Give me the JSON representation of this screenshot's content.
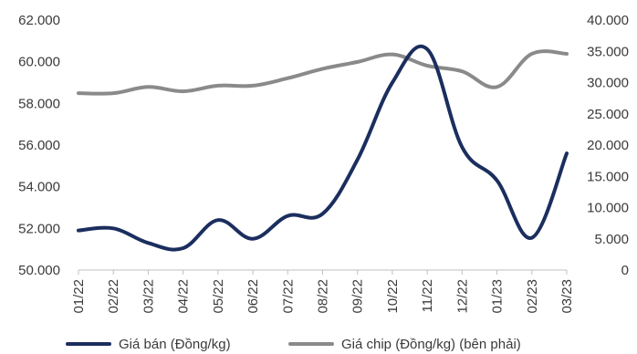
{
  "chart_data": {
    "type": "line",
    "categories": [
      "01/22",
      "02/22",
      "03/22",
      "04/22",
      "05/22",
      "06/22",
      "07/22",
      "08/22",
      "09/22",
      "10/22",
      "11/22",
      "12/22",
      "01/23",
      "02/23",
      "03/23"
    ],
    "y_left": {
      "ylim": [
        50000,
        62000
      ],
      "ticks": [
        50000,
        52000,
        54000,
        56000,
        58000,
        60000,
        62000
      ],
      "tick_labels": [
        "50.000",
        "52.000",
        "54.000",
        "56.000",
        "58.000",
        "60.000",
        "62.000"
      ]
    },
    "y_right": {
      "ylim": [
        0,
        40000
      ],
      "ticks": [
        0,
        5000,
        10000,
        15000,
        20000,
        25000,
        30000,
        35000,
        40000
      ],
      "tick_labels": [
        "0",
        "5.000",
        "10.000",
        "15.000",
        "20.000",
        "25.000",
        "30.000",
        "35.000",
        "40.000"
      ]
    },
    "series": [
      {
        "name": "Giá bán (Đồng/kg)",
        "axis": "left",
        "color": "#1b2e5e",
        "values": [
          51900,
          52000,
          51300,
          51050,
          52400,
          51500,
          52600,
          52700,
          55300,
          59000,
          60600,
          55900,
          54300,
          51550,
          55600
        ]
      },
      {
        "name": "Giá chip (Đồng/kg) (bên phải)",
        "axis": "right",
        "color": "#8a8a8a",
        "values": [
          28300,
          28300,
          29300,
          28600,
          29500,
          29500,
          30700,
          32200,
          33300,
          34500,
          32700,
          31800,
          29300,
          34600,
          34600
        ]
      }
    ],
    "grid": false,
    "legend_position": "bottom"
  }
}
